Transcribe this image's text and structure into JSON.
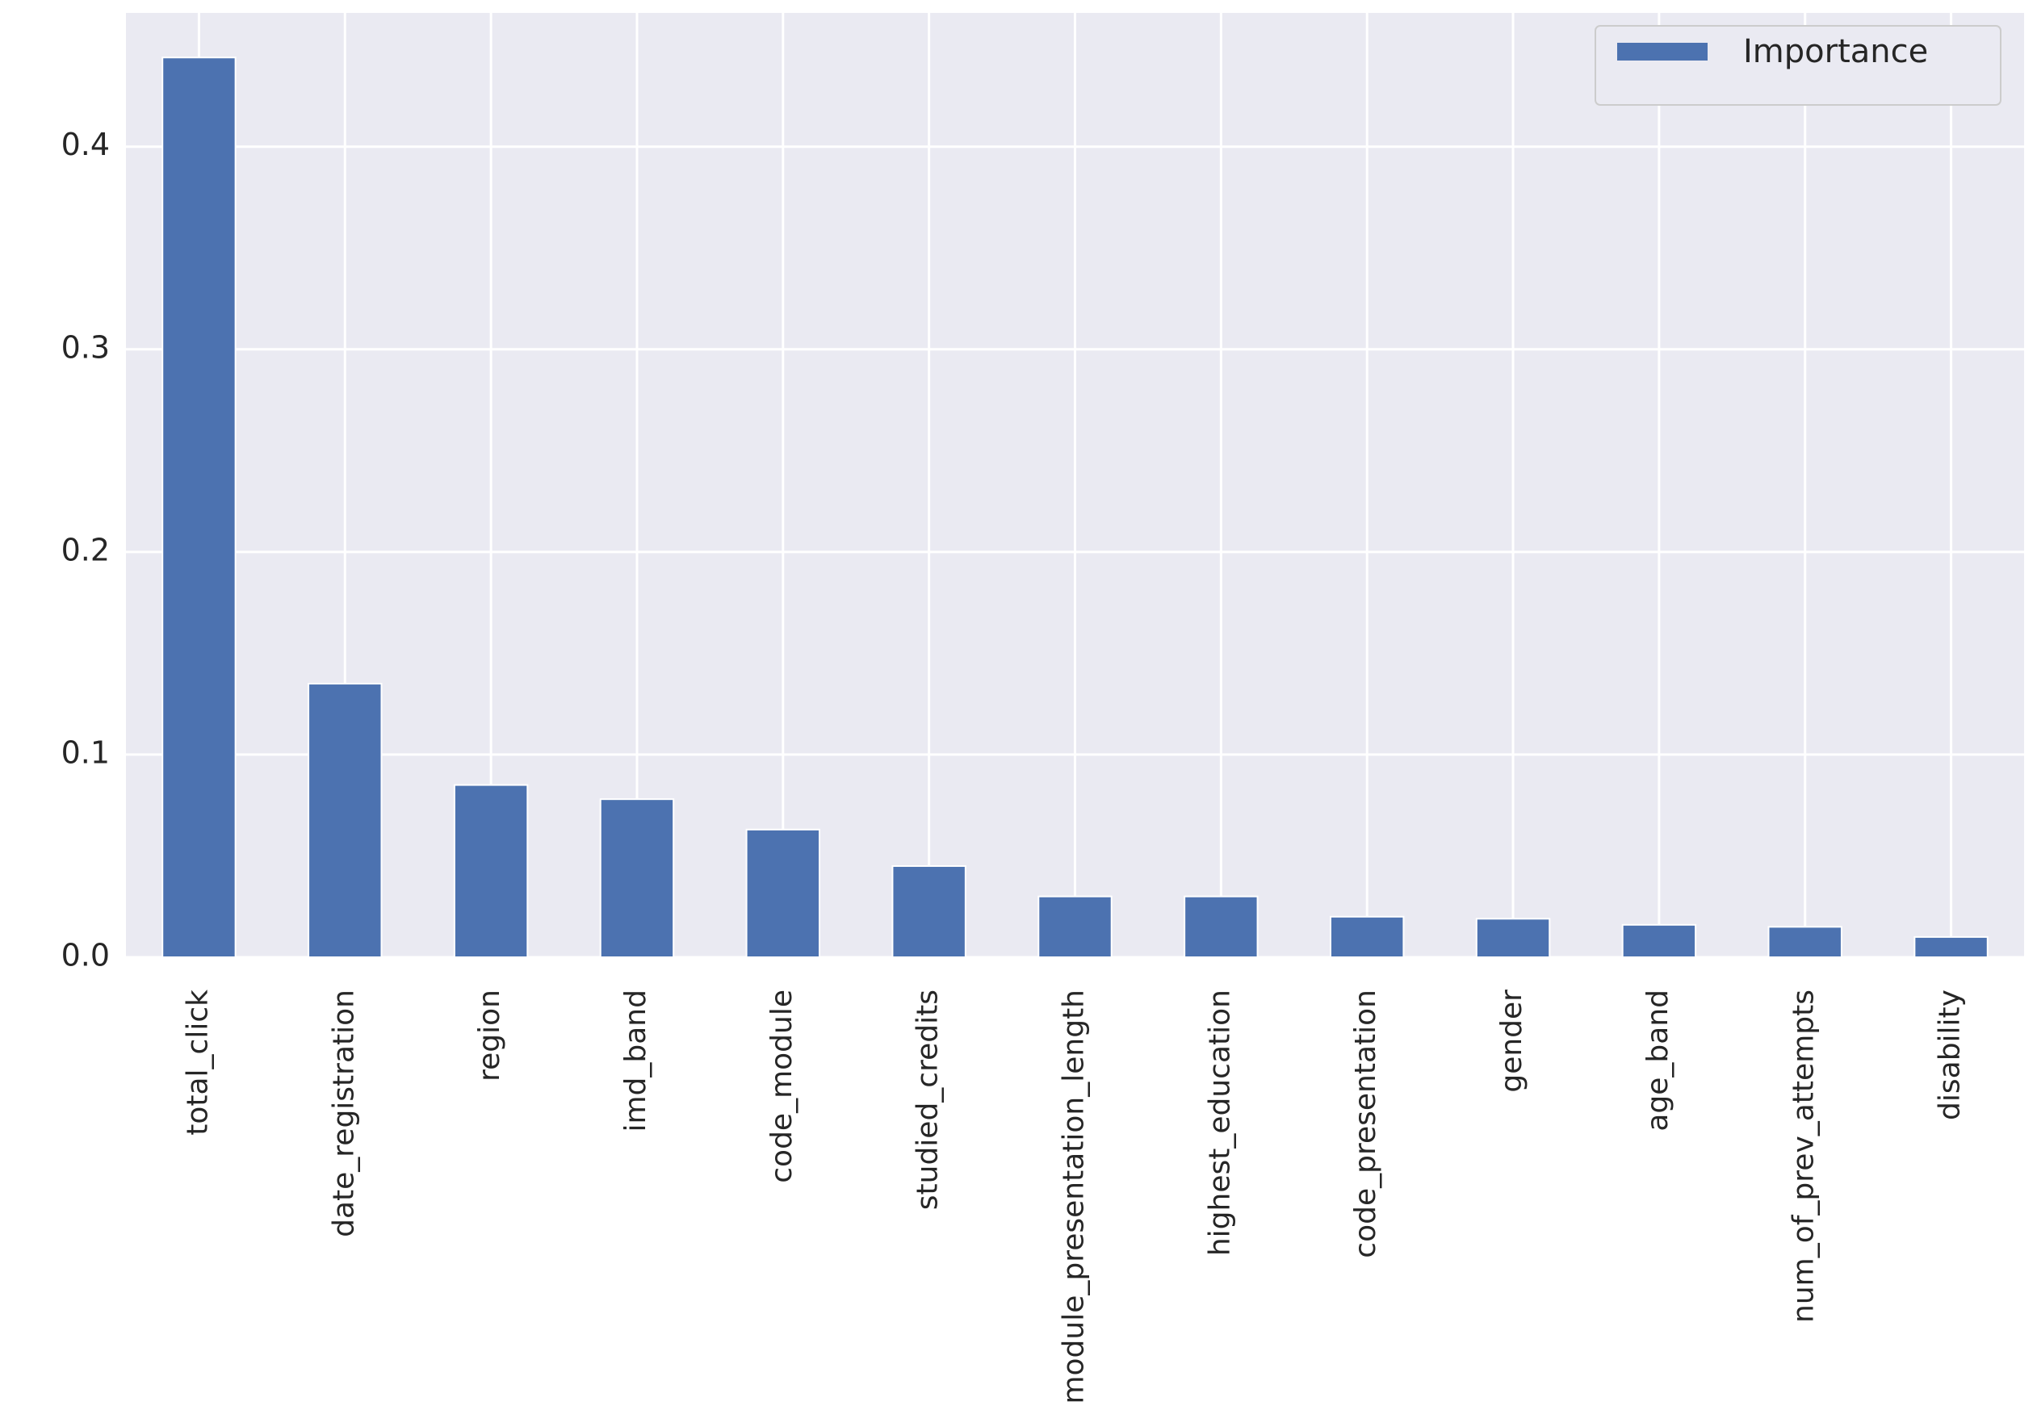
{
  "chart_data": {
    "type": "bar",
    "categories": [
      "total_click",
      "date_registration",
      "region",
      "imd_band",
      "code_module",
      "studied_credits",
      "module_presentation_length",
      "highest_education",
      "code_presentation",
      "gender",
      "age_band",
      "num_of_prev_attempts",
      "disability"
    ],
    "series": [
      {
        "name": "Importance",
        "color": "#4c72b0",
        "values": [
          0.444,
          0.135,
          0.085,
          0.078,
          0.063,
          0.045,
          0.03,
          0.03,
          0.02,
          0.019,
          0.016,
          0.015,
          0.01
        ]
      }
    ],
    "ylim": [
      0,
      0.466
    ],
    "yticks": [
      {
        "value": 0,
        "label": "0.0"
      },
      0.1,
      0.2,
      0.3,
      0.4
    ],
    "grid": true,
    "legend": "upper right"
  }
}
